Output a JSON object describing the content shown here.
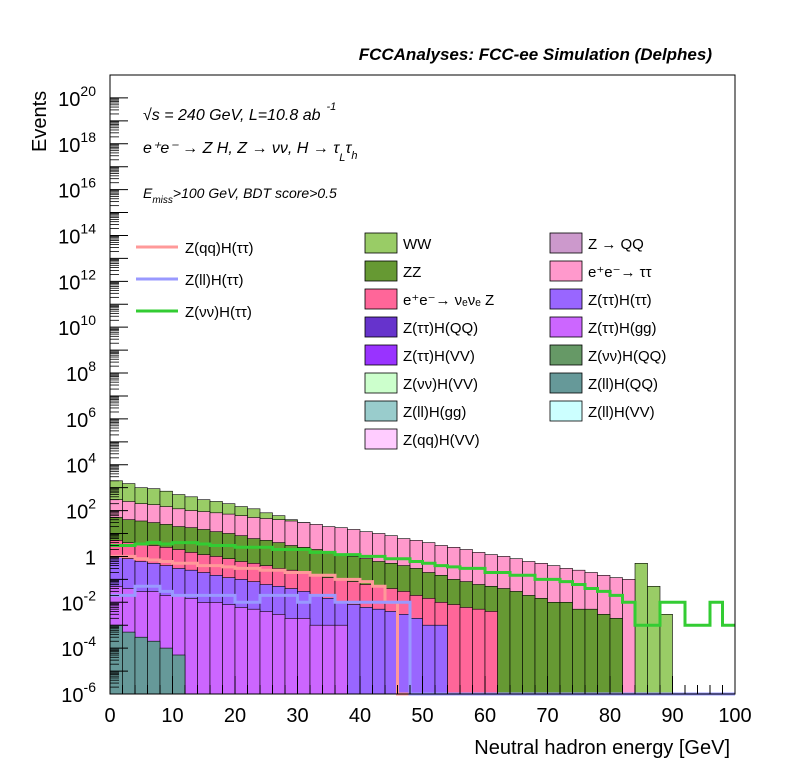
{
  "header": {
    "title": "FCCAnalyses: FCC-ee Simulation (Delphes)",
    "energy_line": "√s = 240 GeV, L=10.8 ab",
    "energy_sup": "-1",
    "process_line": "e⁺e⁻ → Z H, Z → νν, H → τ",
    "process_sub1": "L",
    "process_mid": "τ",
    "process_sub2": "h",
    "cut_prefix": "E",
    "cut_sub": "miss",
    "cut_rest": ">100 GeV, BDT score>0.5"
  },
  "colors": {
    "WW": "#99CC66",
    "ZZ": "#669933",
    "nunuZ": "#FF6699",
    "ttQQ": "#6633CC",
    "ttVV": "#9933FF",
    "nnVV": "#CCFFCC",
    "llgg": "#99CCCC",
    "qqVV": "#FFCCFF",
    "ZQQ": "#CC99CC",
    "eett": "#FF99CC",
    "tttt": "#9966FF",
    "ttgg": "#CC66FF",
    "nnQQ": "#669966",
    "llQQ": "#669999",
    "llVV": "#CCFFFF",
    "sig_qq": "#FF9999",
    "sig_ll": "#9999FF",
    "sig_nn": "#33CC33"
  },
  "chart_data": {
    "type": "histogram",
    "title": "FCCAnalyses: FCC-ee Simulation (Delphes)",
    "xlabel": "Neutral hadron energy [GeV]",
    "ylabel": "Events",
    "xlim": [
      0,
      100
    ],
    "ylim": [
      1e-06,
      1e+21
    ],
    "log_y": true,
    "bin_width": 2,
    "x_ticks": [
      "0",
      "10",
      "20",
      "30",
      "40",
      "50",
      "60",
      "70",
      "80",
      "90",
      "100"
    ],
    "y_ticks": [
      {
        "base": "10",
        "exp": "-6"
      },
      {
        "base": "10",
        "exp": "-4"
      },
      {
        "base": "10",
        "exp": "-2"
      },
      {
        "base": "1",
        "exp": ""
      },
      {
        "base": "10",
        "exp": "2"
      },
      {
        "base": "10",
        "exp": "4"
      },
      {
        "base": "10",
        "exp": "6"
      },
      {
        "base": "10",
        "exp": "8"
      },
      {
        "base": "10",
        "exp": "10"
      },
      {
        "base": "10",
        "exp": "12"
      },
      {
        "base": "10",
        "exp": "14"
      },
      {
        "base": "10",
        "exp": "16"
      },
      {
        "base": "10",
        "exp": "18"
      },
      {
        "base": "10",
        "exp": "20"
      }
    ],
    "stack_total": [
      2000,
      1500,
      1000,
      900,
      700,
      500,
      400,
      300,
      250,
      200,
      150,
      120,
      80,
      60,
      40,
      30,
      20,
      15,
      10,
      8,
      6,
      5,
      4,
      3,
      2,
      1.5,
      1,
      0.7,
      0.5,
      0.3,
      0.2,
      0.15,
      0.1,
      0.1,
      0.05,
      0.05,
      0.03,
      0.02,
      0.02,
      0.01,
      0.01,
      0.01,
      0.5,
      0.05,
      0.003,
      0,
      0,
      0,
      0,
      0
    ],
    "backgrounds": [
      {
        "name": "WW",
        "color": "WW"
      },
      {
        "name": "Z → QQ",
        "color": "ZQQ"
      },
      {
        "name": "ZZ",
        "color": "ZZ"
      },
      {
        "name": "e⁺e⁻→ ττ",
        "color": "eett"
      },
      {
        "name": "e⁺e⁻→ νₑνₑ Z",
        "color": "nunuZ"
      },
      {
        "name": "Z(ττ)H(ττ)",
        "color": "tttt"
      },
      {
        "name": "Z(ττ)H(QQ)",
        "color": "ttQQ"
      },
      {
        "name": "Z(ττ)H(gg)",
        "color": "ttgg"
      },
      {
        "name": "Z(ττ)H(VV)",
        "color": "ttVV"
      },
      {
        "name": "Z(νν)H(QQ)",
        "color": "nnQQ"
      },
      {
        "name": "Z(νν)H(VV)",
        "color": "nnVV"
      },
      {
        "name": "Z(ll)H(QQ)",
        "color": "llQQ"
      },
      {
        "name": "Z(ll)H(gg)",
        "color": "llgg"
      },
      {
        "name": "Z(ll)H(VV)",
        "color": "llVV"
      },
      {
        "name": "Z(qq)H(VV)",
        "color": "qqVV"
      }
    ],
    "layer_tops": {
      "WW": [
        2000,
        1500,
        1000,
        900,
        700,
        500,
        400,
        300,
        250,
        200,
        150,
        120,
        80,
        60,
        40,
        30,
        20,
        15,
        10,
        8,
        6,
        5,
        4,
        3,
        2,
        1.5,
        1,
        0.7,
        0.5,
        0.3,
        0.2,
        0.15,
        0.1,
        0.1,
        0.05,
        0.05,
        0.03,
        0.02,
        0.02,
        0.01,
        0.01,
        0.01,
        0.5,
        0.05,
        0.003,
        0,
        0,
        0,
        0,
        0
      ],
      "eett": [
        300,
        250,
        200,
        180,
        150,
        120,
        100,
        90,
        80,
        70,
        60,
        50,
        45,
        40,
        35,
        30,
        25,
        20,
        18,
        15,
        12,
        10,
        8,
        6,
        5,
        4,
        3,
        2.5,
        2,
        1.5,
        1.2,
        1,
        0.8,
        0.6,
        0.5,
        0.4,
        0.3,
        0.25,
        0.2,
        0.15,
        0.12,
        0.1,
        0,
        0,
        0,
        0,
        0,
        0,
        0,
        0
      ],
      "ZZ": [
        50,
        40,
        35,
        30,
        25,
        20,
        18,
        15,
        12,
        10,
        8,
        6,
        5,
        4,
        3,
        2.5,
        2,
        1.5,
        1.2,
        1,
        0.8,
        0.6,
        0.5,
        0.4,
        0.3,
        0.2,
        0.15,
        0.1,
        0.08,
        0.06,
        0.05,
        0.04,
        0.03,
        0.02,
        0.015,
        0.01,
        0.01,
        0.005,
        0.005,
        0.003,
        0.002,
        0,
        0,
        0,
        0,
        0,
        0,
        0,
        0,
        0
      ],
      "nunuZ": [
        5,
        4,
        3.5,
        3,
        2.5,
        2,
        1.5,
        1.2,
        1,
        0.8,
        0.6,
        0.5,
        0.4,
        0.3,
        0.25,
        0.2,
        0.15,
        0.12,
        0.1,
        0.08,
        0.06,
        0.05,
        0.04,
        0.03,
        0.02,
        0.015,
        0.01,
        0.008,
        0.006,
        0.005,
        0.004,
        0,
        0,
        0,
        0,
        0,
        0,
        0,
        0,
        0,
        0,
        0,
        0,
        0,
        0,
        0,
        0,
        0,
        0,
        0
      ],
      "tttt": [
        1,
        0.8,
        0.6,
        0.5,
        0.4,
        0.3,
        0.25,
        0.2,
        0.15,
        0.12,
        0.1,
        0.08,
        0.06,
        0.05,
        0.04,
        0.03,
        0.02,
        0.015,
        0.01,
        0.008,
        0.006,
        0.005,
        0.004,
        0.003,
        0.002,
        0.001,
        0.001,
        0,
        0,
        0,
        0,
        0,
        0,
        0,
        0,
        0,
        0,
        0,
        0,
        0,
        0,
        0,
        0,
        0,
        0,
        0,
        0,
        0,
        0,
        0
      ],
      "ttgg": [
        0.05,
        0.04,
        0.03,
        0.03,
        0.02,
        0.02,
        0.015,
        0.01,
        0.01,
        0.008,
        0.006,
        0.005,
        0.004,
        0.003,
        0.002,
        0.002,
        0.001,
        0.001,
        0.001,
        0,
        0,
        0,
        0,
        0,
        0,
        0,
        0,
        0,
        0,
        0,
        0,
        0,
        0,
        0,
        0,
        0,
        0,
        0,
        0,
        0,
        0,
        0,
        0,
        0,
        0,
        0,
        0,
        0,
        0,
        0
      ],
      "llQQ": [
        0.001,
        0.0005,
        0.0003,
        0.0002,
        0.0001,
        5e-05,
        0,
        0,
        0,
        0,
        0,
        0,
        0,
        0,
        0,
        0,
        0,
        0,
        0,
        0,
        0,
        0,
        0,
        0,
        0,
        0,
        0,
        0,
        0,
        0,
        0,
        0,
        0,
        0,
        0,
        0,
        0,
        0,
        0,
        0,
        0,
        0,
        0,
        0,
        0,
        0,
        0,
        0,
        0,
        0
      ]
    },
    "signals": [
      {
        "name": "Z(qq)H(ττ)",
        "color": "sig_qq",
        "values": [
          1,
          1,
          0.8,
          0.7,
          0.6,
          0.5,
          0.5,
          0.4,
          0.4,
          0.35,
          0.3,
          0.3,
          0.25,
          0.25,
          0.2,
          0.2,
          0.15,
          0.15,
          0.1,
          0.1,
          0.08,
          0.05,
          0.01,
          0,
          0,
          0,
          0,
          0,
          0,
          0,
          0,
          0,
          0,
          0,
          0,
          0,
          0,
          0,
          0,
          0,
          0,
          0,
          0,
          0,
          0,
          0,
          0,
          0,
          0,
          0
        ]
      },
      {
        "name": "Z(ll)H(ττ)",
        "color": "sig_ll",
        "values": [
          0.02,
          0.02,
          0.05,
          0.05,
          0.03,
          0.02,
          0.02,
          0.02,
          0.02,
          0.02,
          0.01,
          0.01,
          0.02,
          0.02,
          0.02,
          0.01,
          0.02,
          0.02,
          0.01,
          0.01,
          0.01,
          0.01,
          0.01,
          0.01,
          0,
          0,
          0,
          0,
          0,
          0,
          0,
          0,
          0,
          0,
          0,
          0,
          0,
          0,
          0,
          0,
          0,
          0,
          0,
          0,
          0,
          0,
          0,
          0,
          0,
          0
        ]
      },
      {
        "name": "Z(νν)H(ττ)",
        "color": "sig_nn",
        "values": [
          3,
          3,
          3.5,
          4,
          3.5,
          4,
          4,
          3.5,
          3,
          3,
          2.5,
          2.5,
          2.5,
          2,
          2,
          2,
          1.5,
          1.5,
          1.2,
          1.2,
          1,
          1,
          0.8,
          0.8,
          0.6,
          0.5,
          0.4,
          0.35,
          0.3,
          0.3,
          0.2,
          0.2,
          0.15,
          0.15,
          0.1,
          0.1,
          0.08,
          0.06,
          0.04,
          0.03,
          0.02,
          0.01,
          0.001,
          0.001,
          0.01,
          0.01,
          0.001,
          0.001,
          0.01,
          0.001
        ]
      }
    ]
  },
  "legend_signals": [
    "Z(qq)H(ττ)",
    "Z(ll)H(ττ)",
    "Z(νν)H(ττ)"
  ],
  "legend_col1": [
    {
      "label": "WW",
      "color": "WW"
    },
    {
      "label": "ZZ",
      "color": "ZZ"
    },
    {
      "label": "e⁺e⁻→ νₑνₑ Z",
      "color": "nunuZ"
    },
    {
      "label": "Z(ττ)H(QQ)",
      "color": "ttQQ"
    },
    {
      "label": "Z(ττ)H(VV)",
      "color": "ttVV"
    },
    {
      "label": "Z(νν)H(VV)",
      "color": "nnVV"
    },
    {
      "label": "Z(ll)H(gg)",
      "color": "llgg"
    },
    {
      "label": "Z(qq)H(VV)",
      "color": "qqVV"
    }
  ],
  "legend_col2": [
    {
      "label": "Z → QQ",
      "color": "ZQQ"
    },
    {
      "label": "e⁺e⁻→ ττ",
      "color": "eett"
    },
    {
      "label": "Z(ττ)H(ττ)",
      "color": "tttt"
    },
    {
      "label": "Z(ττ)H(gg)",
      "color": "ttgg"
    },
    {
      "label": "Z(νν)H(QQ)",
      "color": "nnQQ"
    },
    {
      "label": "Z(ll)H(QQ)",
      "color": "llQQ"
    },
    {
      "label": "Z(ll)H(VV)",
      "color": "llVV"
    }
  ]
}
